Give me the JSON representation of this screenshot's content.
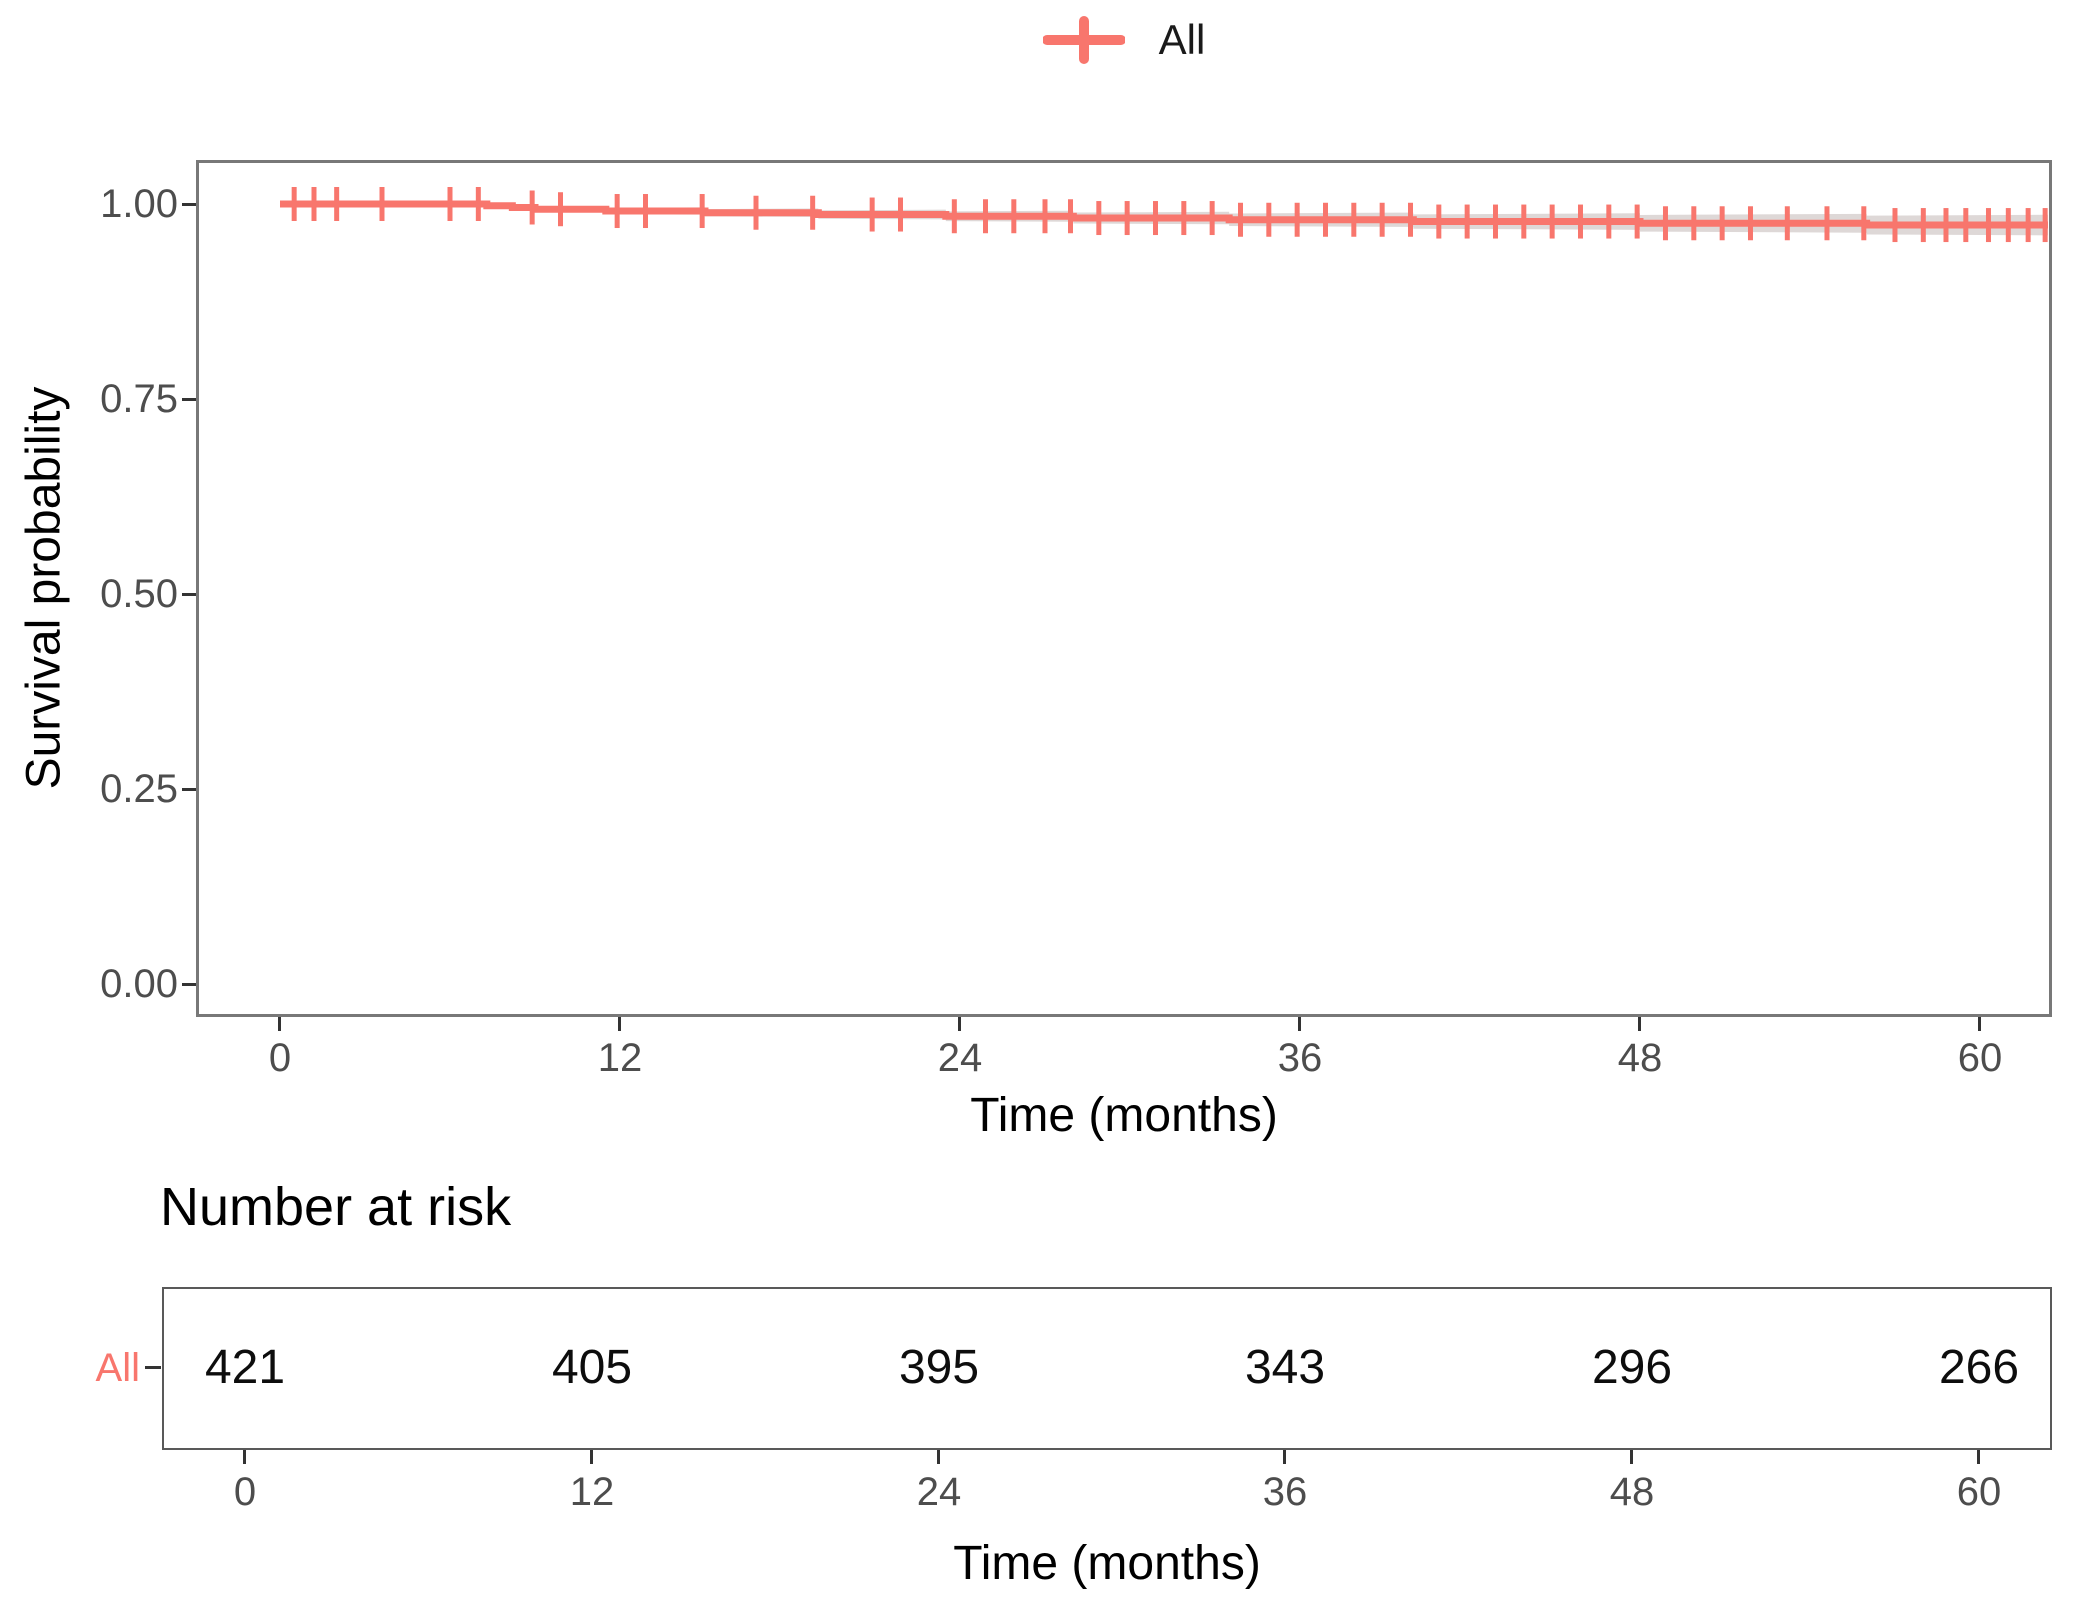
{
  "legend": [
    {
      "label": "All",
      "color": "#f8766d"
    }
  ],
  "colors": {
    "accent": "#f8766d",
    "axis_text": "#4d4d4d",
    "panel_border": "#787878",
    "confidence_band": "rgba(173,158,155,0.40)"
  },
  "chart_data": {
    "type": "line",
    "subtype": "kaplan_meier_step",
    "title": "",
    "xlabel": "Time (months)",
    "ylabel": "Survival probability",
    "x_ticks": [
      0,
      12,
      24,
      36,
      48,
      60
    ],
    "y_tick_labels": [
      "1.00",
      "0.75",
      "0.50",
      "0.25",
      "0.00"
    ],
    "xlim": [
      -2.9,
      62.6
    ],
    "ylim": [
      0,
      1.05
    ],
    "grid": false,
    "legend_position": "top",
    "series": [
      {
        "name": "All",
        "color": "#f8766d",
        "steps": [
          [
            0,
            1.0
          ],
          [
            7.3,
            0.9978
          ],
          [
            8.2,
            0.9955
          ],
          [
            9.0,
            0.9933
          ],
          [
            11.5,
            0.991
          ],
          [
            15.0,
            0.9888
          ],
          [
            19.0,
            0.9865
          ],
          [
            23.5,
            0.9843
          ],
          [
            28.0,
            0.982
          ],
          [
            33.5,
            0.9798
          ],
          [
            40.0,
            0.9775
          ],
          [
            48.0,
            0.9753
          ],
          [
            56.0,
            0.973
          ],
          [
            62.4,
            0.973
          ]
        ],
        "censor_times": [
          0.5,
          1.2,
          2.0,
          3.6,
          6.0,
          7.0,
          8.9,
          9.9,
          11.9,
          12.9,
          14.9,
          16.8,
          18.8,
          20.9,
          21.9,
          23.8,
          24.9,
          25.9,
          27.0,
          27.9,
          28.9,
          29.9,
          30.9,
          31.9,
          32.9,
          33.9,
          34.9,
          35.9,
          36.9,
          37.9,
          38.9,
          39.9,
          40.9,
          41.9,
          42.9,
          43.9,
          44.9,
          45.9,
          46.9,
          47.9,
          48.9,
          49.9,
          50.9,
          51.9,
          53.2,
          54.6,
          55.9,
          57.0,
          58.0,
          58.8,
          59.5,
          60.3,
          61.0,
          61.7,
          62.3
        ]
      }
    ],
    "risk_table": {
      "title": "Number at risk",
      "xlabel": "Time (months)",
      "row_label": "All",
      "times": [
        0,
        12,
        24,
        36,
        48,
        60
      ],
      "counts": [
        421,
        405,
        395,
        343,
        296,
        266
      ]
    }
  }
}
